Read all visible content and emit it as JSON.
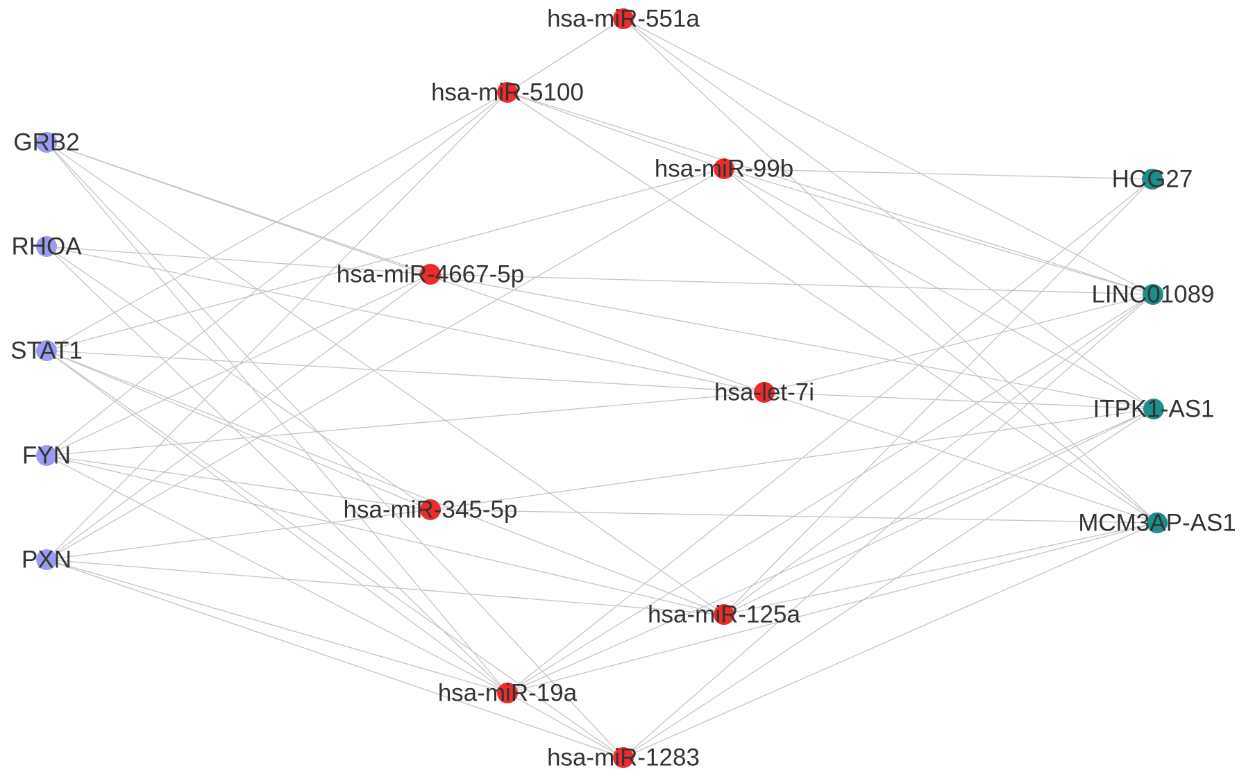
{
  "colors": {
    "gene": "#9b9bf2",
    "mirna": "#ee2c2c",
    "lncrna": "#1c8f8a",
    "edge": "#c4c4c4",
    "label": "#333333"
  },
  "nodes": [
    {
      "id": "GRB2",
      "group": "gene"
    },
    {
      "id": "RHOA",
      "group": "gene"
    },
    {
      "id": "STAT1",
      "group": "gene"
    },
    {
      "id": "FYN",
      "group": "gene"
    },
    {
      "id": "PXN",
      "group": "gene"
    },
    {
      "id": "hsa-miR-551a",
      "group": "mirna"
    },
    {
      "id": "hsa-miR-5100",
      "group": "mirna"
    },
    {
      "id": "hsa-miR-99b",
      "group": "mirna"
    },
    {
      "id": "hsa-miR-4667-5p",
      "group": "mirna"
    },
    {
      "id": "hsa-let-7i",
      "group": "mirna"
    },
    {
      "id": "hsa-miR-345-5p",
      "group": "mirna"
    },
    {
      "id": "hsa-miR-125a",
      "group": "mirna"
    },
    {
      "id": "hsa-miR-19a",
      "group": "mirna"
    },
    {
      "id": "hsa-miR-1283",
      "group": "mirna"
    },
    {
      "id": "HCG27",
      "group": "lncrna"
    },
    {
      "id": "LINC01089",
      "group": "lncrna"
    },
    {
      "id": "ITPK1-AS1",
      "group": "lncrna"
    },
    {
      "id": "MCM3AP-AS1",
      "group": "lncrna"
    }
  ],
  "edges": [
    [
      "GRB2",
      "hsa-miR-4667-5p"
    ],
    [
      "GRB2",
      "hsa-let-7i"
    ],
    [
      "GRB2",
      "hsa-miR-125a"
    ],
    [
      "GRB2",
      "hsa-miR-19a"
    ],
    [
      "GRB2",
      "hsa-miR-1283"
    ],
    [
      "RHOA",
      "hsa-miR-4667-5p"
    ],
    [
      "RHOA",
      "hsa-let-7i"
    ],
    [
      "RHOA",
      "hsa-miR-345-5p"
    ],
    [
      "RHOA",
      "hsa-miR-19a"
    ],
    [
      "STAT1",
      "hsa-miR-5100"
    ],
    [
      "STAT1",
      "hsa-miR-99b"
    ],
    [
      "STAT1",
      "hsa-let-7i"
    ],
    [
      "STAT1",
      "hsa-miR-345-5p"
    ],
    [
      "STAT1",
      "hsa-miR-125a"
    ],
    [
      "STAT1",
      "hsa-miR-19a"
    ],
    [
      "STAT1",
      "hsa-miR-1283"
    ],
    [
      "FYN",
      "hsa-miR-5100"
    ],
    [
      "FYN",
      "hsa-miR-4667-5p"
    ],
    [
      "FYN",
      "hsa-let-7i"
    ],
    [
      "FYN",
      "hsa-miR-345-5p"
    ],
    [
      "FYN",
      "hsa-miR-125a"
    ],
    [
      "FYN",
      "hsa-miR-19a"
    ],
    [
      "PXN",
      "hsa-miR-5100"
    ],
    [
      "PXN",
      "hsa-miR-99b"
    ],
    [
      "PXN",
      "hsa-miR-4667-5p"
    ],
    [
      "PXN",
      "hsa-miR-345-5p"
    ],
    [
      "PXN",
      "hsa-miR-125a"
    ],
    [
      "PXN",
      "hsa-miR-19a"
    ],
    [
      "PXN",
      "hsa-miR-1283"
    ],
    [
      "hsa-miR-551a",
      "hsa-miR-5100"
    ],
    [
      "hsa-miR-551a",
      "LINC01089"
    ],
    [
      "hsa-miR-551a",
      "ITPK1-AS1"
    ],
    [
      "hsa-miR-551a",
      "MCM3AP-AS1"
    ],
    [
      "hsa-miR-5100",
      "hsa-miR-99b"
    ],
    [
      "hsa-miR-5100",
      "LINC01089"
    ],
    [
      "hsa-miR-5100",
      "MCM3AP-AS1"
    ],
    [
      "hsa-miR-99b",
      "HCG27"
    ],
    [
      "hsa-miR-99b",
      "LINC01089"
    ],
    [
      "hsa-miR-99b",
      "ITPK1-AS1"
    ],
    [
      "hsa-miR-99b",
      "MCM3AP-AS1"
    ],
    [
      "hsa-miR-4667-5p",
      "LINC01089"
    ],
    [
      "hsa-miR-4667-5p",
      "ITPK1-AS1"
    ],
    [
      "hsa-let-7i",
      "LINC01089"
    ],
    [
      "hsa-let-7i",
      "ITPK1-AS1"
    ],
    [
      "hsa-let-7i",
      "MCM3AP-AS1"
    ],
    [
      "hsa-miR-345-5p",
      "ITPK1-AS1"
    ],
    [
      "hsa-miR-345-5p",
      "MCM3AP-AS1"
    ],
    [
      "hsa-miR-125a",
      "HCG27"
    ],
    [
      "hsa-miR-125a",
      "LINC01089"
    ],
    [
      "hsa-miR-125a",
      "ITPK1-AS1"
    ],
    [
      "hsa-miR-125a",
      "MCM3AP-AS1"
    ],
    [
      "hsa-miR-19a",
      "HCG27"
    ],
    [
      "hsa-miR-19a",
      "LINC01089"
    ],
    [
      "hsa-miR-19a",
      "ITPK1-AS1"
    ],
    [
      "hsa-miR-19a",
      "MCM3AP-AS1"
    ],
    [
      "hsa-miR-1283",
      "hsa-miR-19a"
    ],
    [
      "hsa-miR-1283",
      "LINC01089"
    ],
    [
      "hsa-miR-1283",
      "ITPK1-AS1"
    ],
    [
      "hsa-miR-1283",
      "MCM3AP-AS1"
    ]
  ]
}
